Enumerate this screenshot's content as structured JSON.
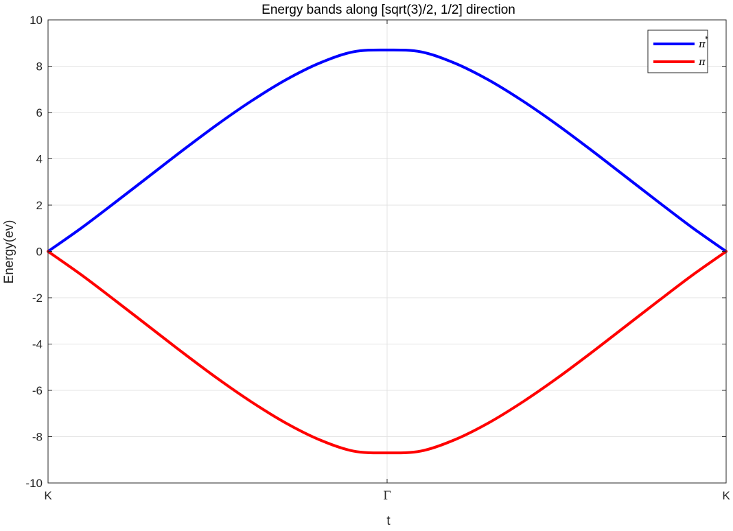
{
  "chart_data": {
    "type": "line",
    "title": "Energy bands along [sqrt(3)/2, 1/2] direction",
    "xlabel": "t",
    "ylabel": "Energy(ev)",
    "x_tick_labels": [
      "K",
      "Γ",
      "K"
    ],
    "x_tick_positions": [
      0,
      1,
      2
    ],
    "xlim": [
      0,
      2
    ],
    "ylim": [
      -10,
      10
    ],
    "y_ticks": [
      -10,
      -8,
      -6,
      -4,
      -2,
      0,
      2,
      4,
      6,
      8,
      10
    ],
    "y_tick_labels": [
      "-10",
      "-8",
      "-6",
      "-4",
      "-2",
      "0",
      "2",
      "4",
      "6",
      "8",
      "10"
    ],
    "grid": true,
    "legend_position": "top-right",
    "series": [
      {
        "name": "π*",
        "color": "#0000ff",
        "x": [
          0,
          0.1,
          0.2,
          0.3,
          0.4,
          0.5,
          0.6,
          0.7,
          0.8,
          0.9,
          1.0,
          1.1,
          1.2,
          1.3,
          1.4,
          1.5,
          1.6,
          1.7,
          1.8,
          1.9,
          2.0
        ],
        "values": [
          0,
          1.03,
          2.14,
          3.27,
          4.4,
          5.49,
          6.5,
          7.4,
          8.13,
          8.62,
          8.7,
          8.62,
          8.13,
          7.4,
          6.5,
          5.49,
          4.4,
          3.27,
          2.14,
          1.03,
          0
        ]
      },
      {
        "name": "π",
        "color": "#ff0000",
        "x": [
          0,
          0.1,
          0.2,
          0.3,
          0.4,
          0.5,
          0.6,
          0.7,
          0.8,
          0.9,
          1.0,
          1.1,
          1.2,
          1.3,
          1.4,
          1.5,
          1.6,
          1.7,
          1.8,
          1.9,
          2.0
        ],
        "values": [
          0,
          -1.03,
          -2.14,
          -3.27,
          -4.4,
          -5.49,
          -6.5,
          -7.4,
          -8.13,
          -8.62,
          -8.7,
          -8.62,
          -8.13,
          -7.4,
          -6.5,
          -5.49,
          -4.4,
          -3.27,
          -2.14,
          -1.03,
          0
        ]
      }
    ]
  }
}
